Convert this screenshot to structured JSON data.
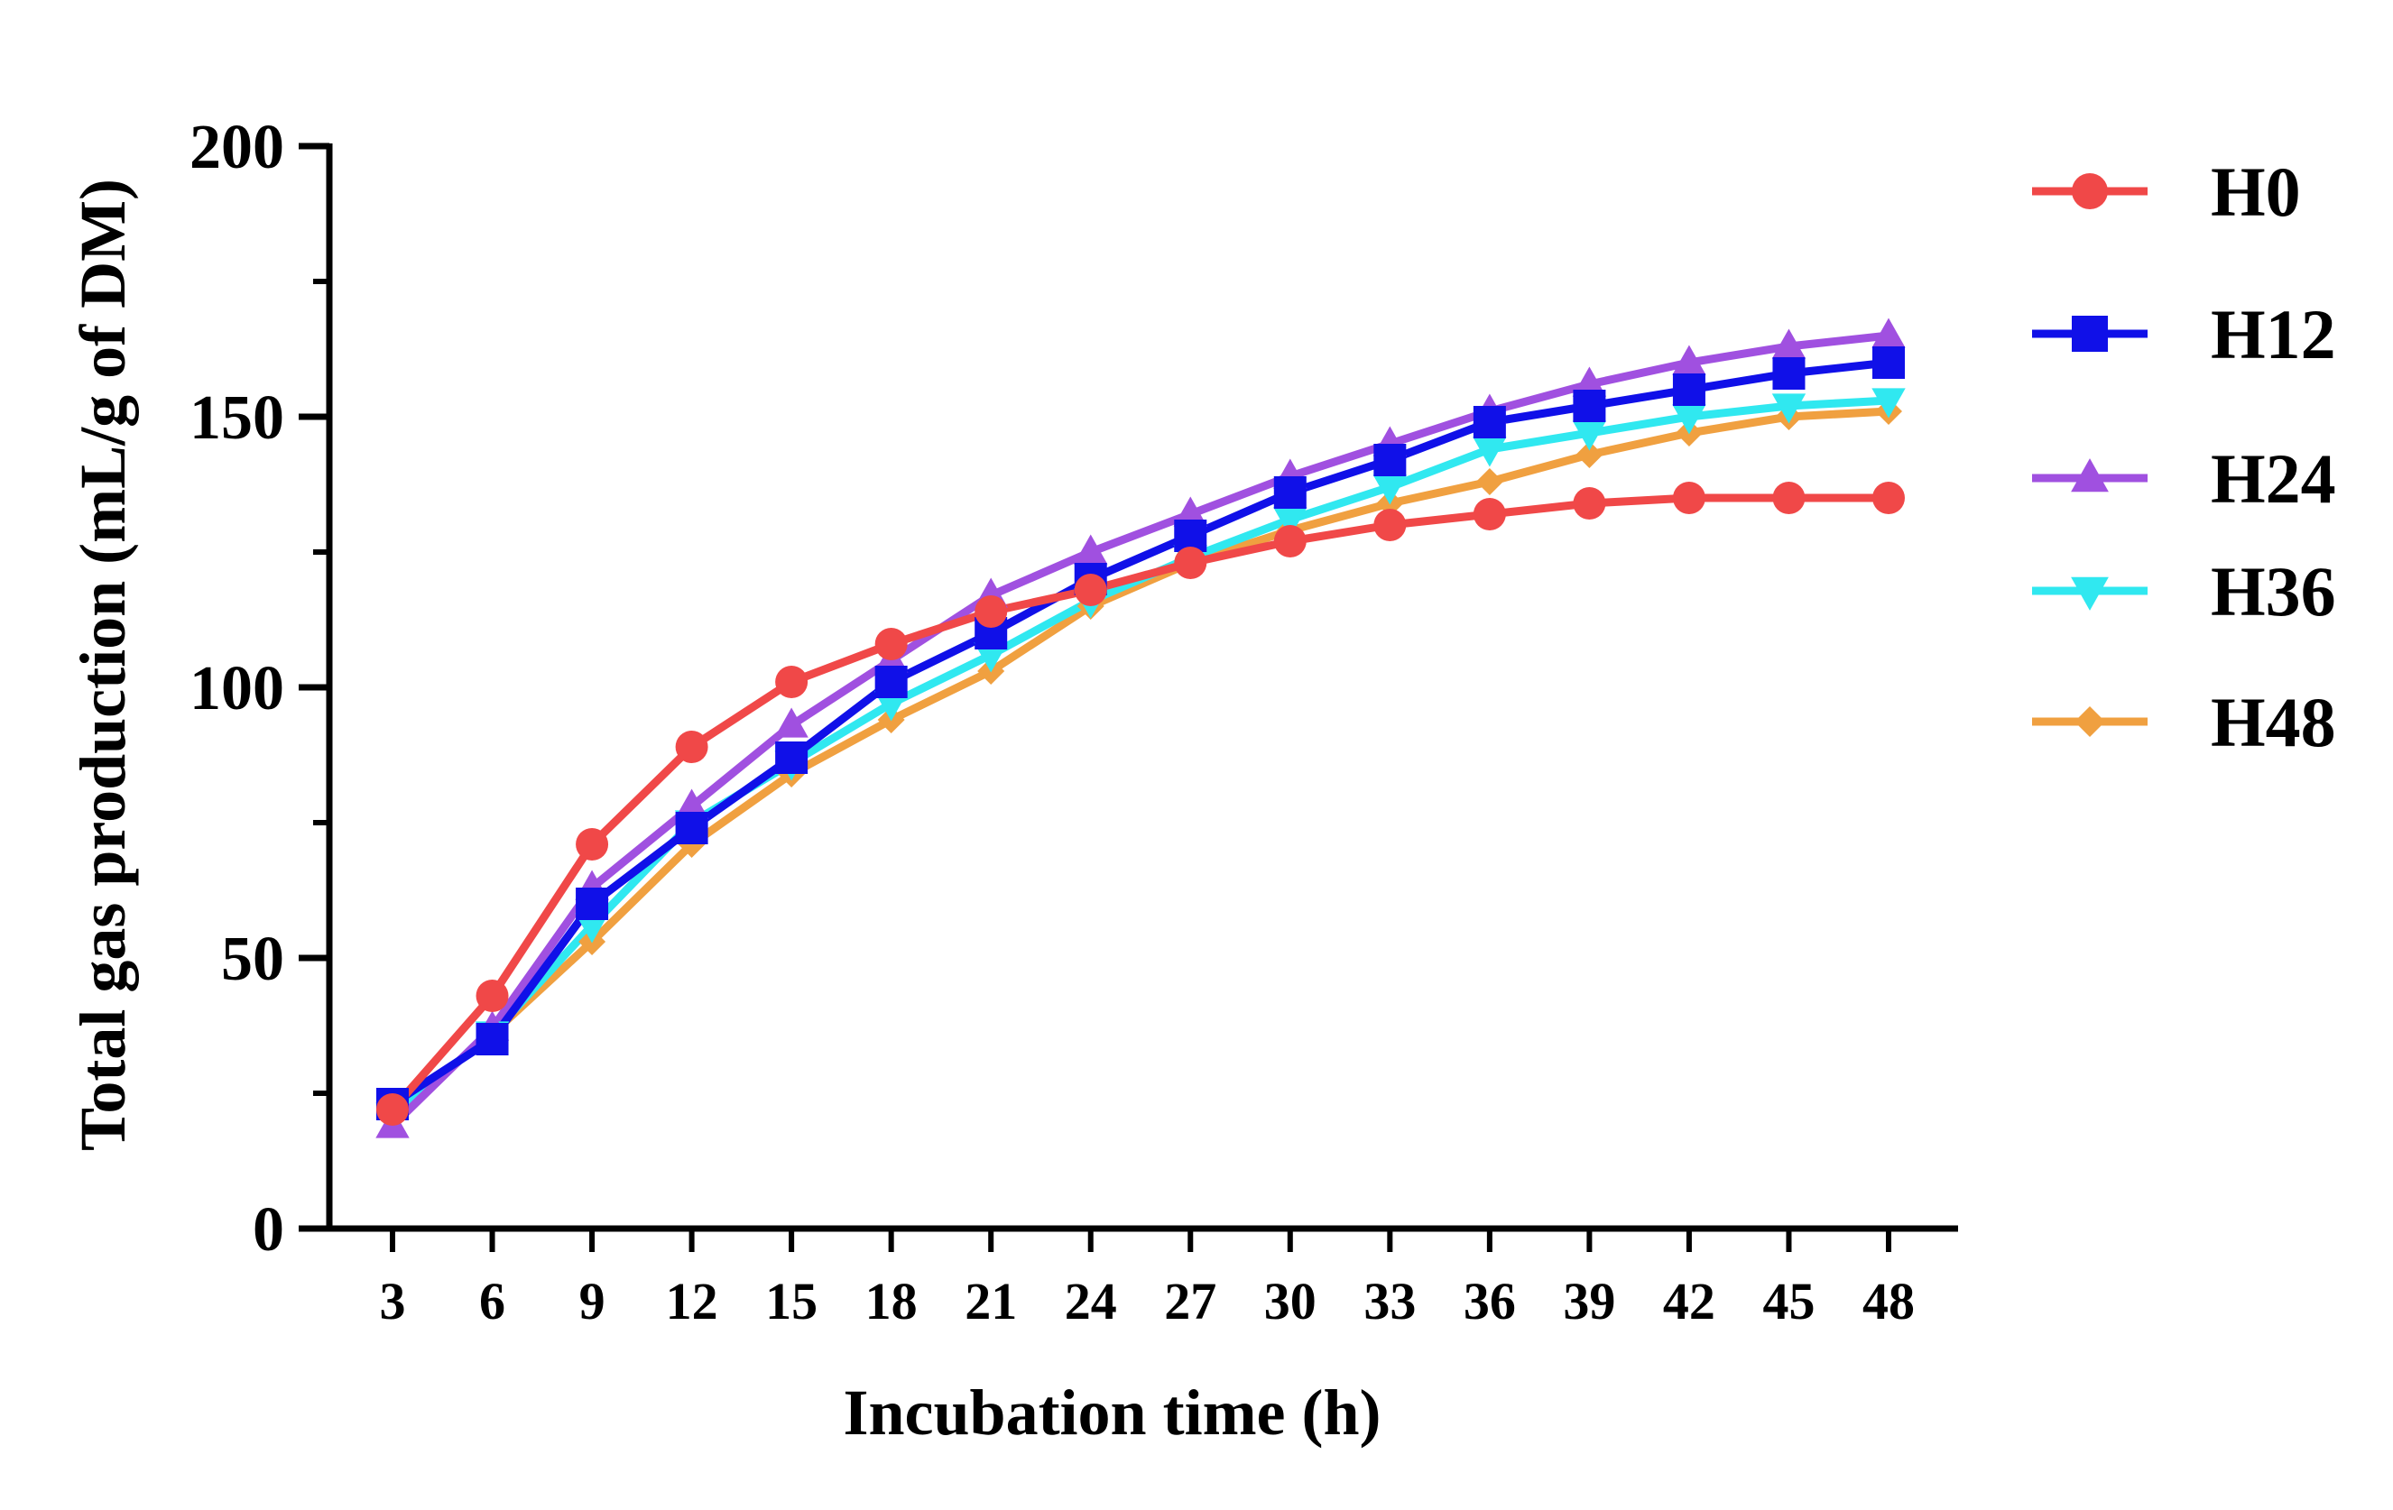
{
  "chart_data": {
    "type": "line",
    "title": "",
    "xlabel": "Incubation time (h)",
    "ylabel": "Total gas production (mL/g of DM)",
    "x": [
      3,
      6,
      9,
      12,
      15,
      18,
      21,
      24,
      27,
      30,
      33,
      36,
      39,
      42,
      45,
      48
    ],
    "x_tick_labels": [
      "3",
      "6",
      "9",
      "12",
      "15",
      "18",
      "21",
      "24",
      "27",
      "30",
      "33",
      "36",
      "39",
      "42",
      "45",
      "48"
    ],
    "y_tick_labels": [
      "0",
      "50",
      "100",
      "150",
      "200"
    ],
    "yticks": [
      0,
      50,
      100,
      150,
      200
    ],
    "ylim": [
      0,
      200
    ],
    "legend_position": "right",
    "series": [
      {
        "name": "H0",
        "color": "#f04848",
        "marker": "circle",
        "values": [
          22,
          43,
          71,
          89,
          101,
          108,
          114,
          118,
          123,
          127,
          130,
          132,
          134,
          135,
          135,
          135
        ]
      },
      {
        "name": "H12",
        "color": "#1010e8",
        "marker": "square",
        "values": [
          23,
          35,
          60,
          74,
          87,
          101,
          110,
          120,
          128,
          136,
          142,
          149,
          152,
          155,
          158,
          160
        ]
      },
      {
        "name": "H24",
        "color": "#a050e0",
        "marker": "triangle-up",
        "values": [
          19,
          37,
          63,
          78,
          93,
          105,
          117,
          125,
          132,
          139,
          145,
          151,
          156,
          160,
          163,
          165
        ]
      },
      {
        "name": "H36",
        "color": "#30e8f0",
        "marker": "triangle-down",
        "values": [
          21,
          36,
          56,
          75,
          86,
          97,
          106,
          116,
          124,
          131,
          137,
          144,
          147,
          150,
          152,
          153
        ]
      },
      {
        "name": "H48",
        "color": "#f0a040",
        "marker": "diamond",
        "values": [
          21,
          36,
          53,
          71,
          84,
          94,
          103,
          115,
          123,
          129,
          134,
          138,
          143,
          147,
          150,
          151
        ]
      }
    ]
  }
}
